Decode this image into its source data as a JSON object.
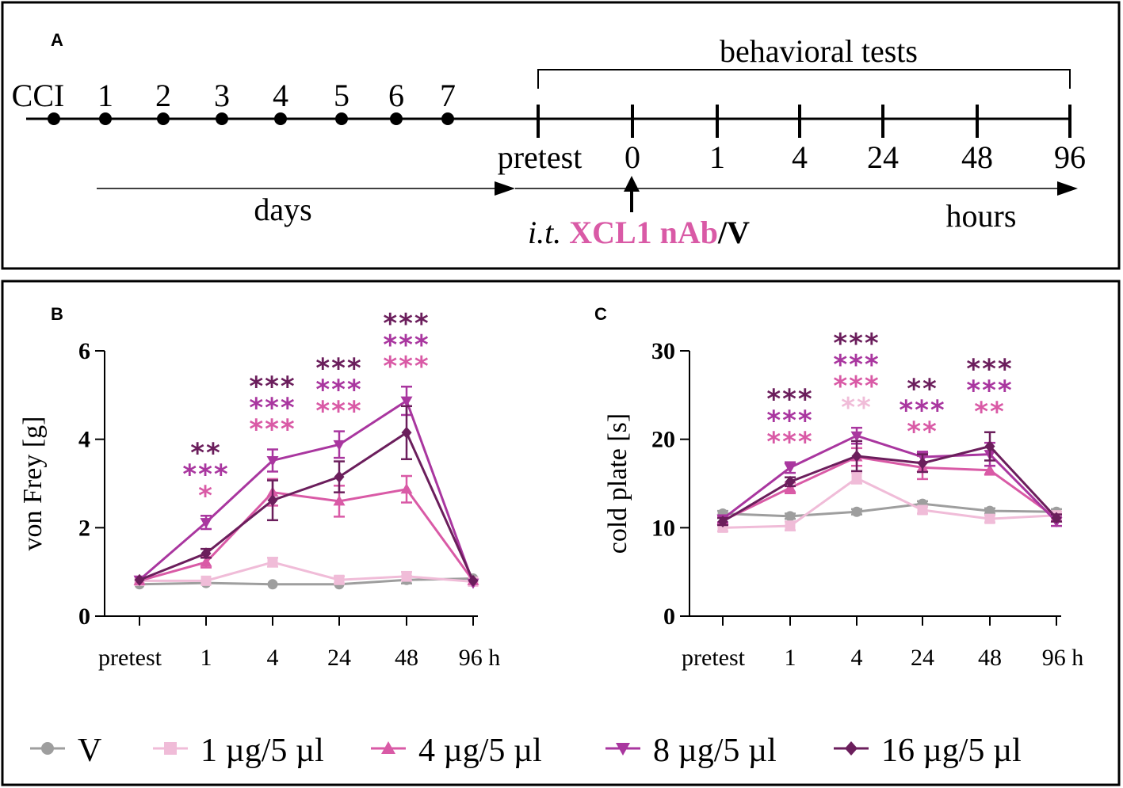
{
  "panel_a": {
    "letter": "A",
    "bracket_label": "behavioral tests",
    "day_labels": [
      "CCI",
      "1",
      "2",
      "3",
      "4",
      "5",
      "6",
      "7"
    ],
    "hour_labels": [
      "pretest",
      "0",
      "1",
      "4",
      "24",
      "48",
      "96"
    ],
    "days_label": "days",
    "hours_label": "hours",
    "injection": {
      "route": "i.t.",
      "agent": "XCL1 nAb",
      "separator": "/",
      "vehicle": "V"
    }
  },
  "colors": {
    "V": "#9e9e9e",
    "d1": "#f0bcd8",
    "d4": "#d95aa6",
    "d8": "#a9369f",
    "d16": "#6b1e5c",
    "agent": "#d95aa6"
  },
  "legend": [
    {
      "key": "V",
      "label": "V",
      "marker": "circle"
    },
    {
      "key": "d1",
      "label": "1 µg/5 µl",
      "marker": "square"
    },
    {
      "key": "d4",
      "label": "4 µg/5 µl",
      "marker": "triangle-up"
    },
    {
      "key": "d8",
      "label": "8 µg/5 µl",
      "marker": "triangle-down"
    },
    {
      "key": "d16",
      "label": "16 µg/5 µl",
      "marker": "diamond"
    }
  ],
  "chart_data": [
    {
      "panel": "B",
      "type": "line",
      "ylabel": "von Frey [g]",
      "ylim": [
        0,
        6
      ],
      "yticks": [
        0,
        2,
        4,
        6
      ],
      "categories": [
        "pretest",
        "1",
        "4",
        "24",
        "48",
        "96 h"
      ],
      "series": [
        {
          "name": "V",
          "key": "V",
          "values": [
            0.72,
            0.75,
            0.72,
            0.72,
            0.82,
            0.85
          ],
          "err": [
            0.05,
            0.05,
            0.05,
            0.05,
            0.08,
            0.05
          ]
        },
        {
          "name": "1 µg/5 µl",
          "key": "d1",
          "values": [
            0.8,
            0.8,
            1.22,
            0.82,
            0.9,
            0.78
          ],
          "err": [
            0.05,
            0.05,
            0.1,
            0.08,
            0.1,
            0.05
          ]
        },
        {
          "name": "4 µg/5 µl",
          "key": "d4",
          "values": [
            0.8,
            1.22,
            2.8,
            2.6,
            2.87,
            0.8
          ],
          "err": [
            0.05,
            0.12,
            0.3,
            0.35,
            0.3,
            0.05
          ]
        },
        {
          "name": "8 µg/5 µl",
          "key": "d8",
          "values": [
            0.82,
            2.12,
            3.52,
            3.88,
            4.87,
            0.75
          ],
          "err": [
            0.05,
            0.15,
            0.25,
            0.3,
            0.32,
            0.05
          ]
        },
        {
          "name": "16 µg/5 µl",
          "key": "d16",
          "values": [
            0.82,
            1.42,
            2.62,
            3.15,
            4.15,
            0.8
          ],
          "err": [
            0.05,
            0.1,
            0.45,
            0.35,
            0.6,
            0.05
          ]
        }
      ],
      "significance": [
        {
          "x": "1",
          "rows": [
            {
              "key": "d16",
              "text": "**"
            },
            {
              "key": "d8",
              "text": "***"
            },
            {
              "key": "d4",
              "text": "*"
            }
          ]
        },
        {
          "x": "4",
          "rows": [
            {
              "key": "d16",
              "text": "***"
            },
            {
              "key": "d8",
              "text": "***"
            },
            {
              "key": "d4",
              "text": "***"
            }
          ]
        },
        {
          "x": "24",
          "rows": [
            {
              "key": "d16",
              "text": "***"
            },
            {
              "key": "d8",
              "text": "***"
            },
            {
              "key": "d4",
              "text": "***"
            }
          ]
        },
        {
          "x": "48",
          "rows": [
            {
              "key": "d16",
              "text": "***"
            },
            {
              "key": "d8",
              "text": "***"
            },
            {
              "key": "d4",
              "text": "***"
            }
          ]
        }
      ]
    },
    {
      "panel": "C",
      "type": "line",
      "ylabel": "cold plate [s]",
      "ylim": [
        0,
        30
      ],
      "yticks": [
        0,
        10,
        20,
        30
      ],
      "categories": [
        "pretest",
        "1",
        "4",
        "24",
        "48",
        "96 h"
      ],
      "series": [
        {
          "name": "V",
          "key": "V",
          "values": [
            11.6,
            11.3,
            11.8,
            12.7,
            11.9,
            11.8
          ],
          "err": [
            0.3,
            0.3,
            0.3,
            0.3,
            0.3,
            0.3
          ]
        },
        {
          "name": "1 µg/5 µl",
          "key": "d1",
          "values": [
            10.0,
            10.2,
            15.6,
            12.0,
            11.0,
            11.4
          ],
          "err": [
            0.4,
            0.5,
            0.6,
            0.4,
            0.4,
            0.4
          ]
        },
        {
          "name": "4 µg/5 µl",
          "key": "d4",
          "values": [
            10.8,
            14.5,
            18.0,
            16.8,
            16.5,
            11.1
          ],
          "err": [
            0.4,
            0.6,
            1.0,
            1.3,
            0.5,
            0.4
          ]
        },
        {
          "name": "8 µg/5 µl",
          "key": "d8",
          "values": [
            11.0,
            16.8,
            20.4,
            18.0,
            18.3,
            10.7
          ],
          "err": [
            0.4,
            0.6,
            0.9,
            0.6,
            1.3,
            0.5
          ]
        },
        {
          "name": "16 µg/5 µl",
          "key": "d16",
          "values": [
            10.7,
            15.2,
            18.1,
            17.3,
            19.2,
            11.1
          ],
          "err": [
            0.4,
            0.5,
            1.7,
            1.0,
            1.6,
            0.4
          ]
        }
      ],
      "significance": [
        {
          "x": "1",
          "rows": [
            {
              "key": "d16",
              "text": "***"
            },
            {
              "key": "d8",
              "text": "***"
            },
            {
              "key": "d4",
              "text": "***"
            }
          ]
        },
        {
          "x": "4",
          "rows": [
            {
              "key": "d16",
              "text": "***"
            },
            {
              "key": "d8",
              "text": "***"
            },
            {
              "key": "d4",
              "text": "***"
            },
            {
              "key": "d1",
              "text": "**"
            }
          ]
        },
        {
          "x": "24",
          "rows": [
            {
              "key": "d16",
              "text": "**"
            },
            {
              "key": "d8",
              "text": "***"
            },
            {
              "key": "d4",
              "text": "**"
            }
          ]
        },
        {
          "x": "48",
          "rows": [
            {
              "key": "d16",
              "text": "***"
            },
            {
              "key": "d8",
              "text": "***"
            },
            {
              "key": "d4",
              "text": "**"
            }
          ]
        }
      ]
    }
  ]
}
